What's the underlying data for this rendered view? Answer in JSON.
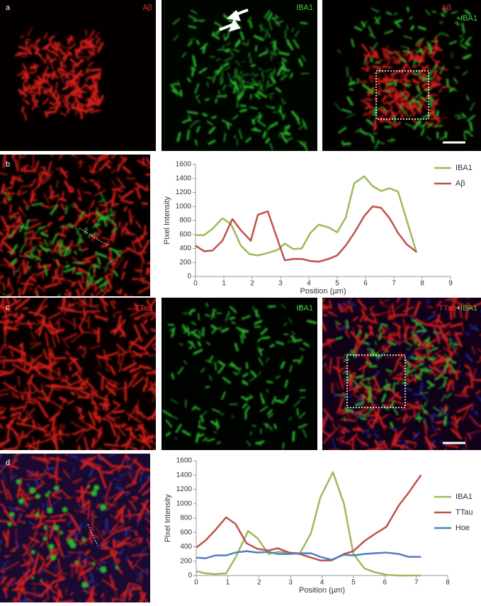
{
  "figure": {
    "panel_letters": [
      "a",
      "b",
      "c",
      "d"
    ],
    "a_labels": [
      "Aβ",
      "IBA1",
      "Aβ",
      "+IBA1"
    ],
    "c_labels": [
      "TTau",
      "IBA1",
      "TTau",
      "+",
      "IBA1"
    ]
  },
  "chart_data": [
    {
      "type": "line",
      "xlabel": "Position (µm)",
      "ylabel": "Pixel Intensity",
      "xlim": [
        0,
        9
      ],
      "xticks": [
        0,
        1,
        2,
        3,
        4,
        5,
        6,
        7,
        8,
        9
      ],
      "ylim": [
        0,
        1600
      ],
      "yticks": [
        0,
        200,
        400,
        600,
        800,
        1000,
        1200,
        1400,
        1600
      ],
      "series": [
        {
          "name": "IBA1",
          "color": "#9bbb59",
          "x": [
            0,
            0.3,
            0.6,
            0.95,
            1.25,
            1.6,
            1.9,
            2.2,
            2.6,
            2.9,
            3.15,
            3.45,
            3.75,
            4.05,
            4.35,
            4.7,
            5.0,
            5.3,
            5.6,
            5.95,
            6.25,
            6.55,
            6.85,
            7.15,
            7.8
          ],
          "values": [
            590,
            590,
            680,
            830,
            750,
            440,
            320,
            300,
            340,
            380,
            470,
            390,
            400,
            620,
            740,
            700,
            630,
            840,
            1330,
            1430,
            1290,
            1220,
            1260,
            1210,
            340
          ]
        },
        {
          "name": "Aβ",
          "color": "#c0504d",
          "x": [
            0,
            0.3,
            0.6,
            0.95,
            1.3,
            1.6,
            1.95,
            2.2,
            2.55,
            2.85,
            3.15,
            3.45,
            3.75,
            4.05,
            4.35,
            4.7,
            5.0,
            5.3,
            5.6,
            5.95,
            6.25,
            6.55,
            6.85,
            7.15,
            7.45,
            7.8
          ],
          "values": [
            440,
            360,
            370,
            510,
            820,
            660,
            510,
            880,
            930,
            580,
            230,
            250,
            250,
            220,
            210,
            250,
            300,
            440,
            620,
            860,
            1000,
            980,
            830,
            620,
            460,
            350
          ]
        }
      ]
    },
    {
      "type": "line",
      "xlabel": "Position (µm)",
      "ylabel": "Pixel Intensity",
      "xlim": [
        0,
        8
      ],
      "xticks": [
        0,
        1,
        2,
        3,
        4,
        5,
        6,
        7,
        8
      ],
      "ylim": [
        0,
        1600
      ],
      "yticks": [
        0,
        200,
        400,
        600,
        800,
        1000,
        1200,
        1400,
        1600
      ],
      "series": [
        {
          "name": "IBA1",
          "color": "#9bbb59",
          "x": [
            0,
            0.3,
            0.6,
            0.95,
            1.25,
            1.65,
            1.95,
            2.3,
            2.6,
            2.95,
            3.3,
            3.65,
            3.95,
            4.35,
            4.7,
            5.0,
            5.35,
            5.65,
            6.05,
            6.45,
            6.75,
            7.15
          ],
          "values": [
            60,
            30,
            20,
            30,
            250,
            620,
            520,
            300,
            330,
            320,
            310,
            590,
            1090,
            1440,
            1000,
            300,
            100,
            50,
            10,
            0,
            0,
            0
          ]
        },
        {
          "name": "TTau",
          "color": "#c0504d",
          "x": [
            0,
            0.3,
            0.6,
            0.95,
            1.25,
            1.6,
            1.95,
            2.3,
            2.6,
            2.95,
            3.3,
            3.65,
            3.95,
            4.3,
            4.7,
            5.0,
            5.35,
            5.65,
            6.05,
            6.45,
            6.75,
            7.15
          ],
          "values": [
            390,
            490,
            630,
            810,
            720,
            450,
            370,
            350,
            380,
            320,
            300,
            250,
            210,
            210,
            300,
            340,
            480,
            570,
            680,
            980,
            1150,
            1400
          ]
        },
        {
          "name": "Hoe",
          "color": "#4f81bd",
          "x": [
            0,
            0.3,
            0.6,
            0.95,
            1.25,
            1.6,
            1.95,
            2.3,
            2.6,
            2.95,
            3.3,
            3.65,
            3.95,
            4.3,
            4.7,
            5.0,
            5.35,
            5.65,
            6.05,
            6.45,
            6.75,
            7.15
          ],
          "values": [
            250,
            240,
            280,
            280,
            320,
            340,
            320,
            330,
            300,
            300,
            310,
            310,
            260,
            220,
            290,
            280,
            300,
            310,
            320,
            300,
            260,
            260
          ]
        }
      ]
    }
  ]
}
